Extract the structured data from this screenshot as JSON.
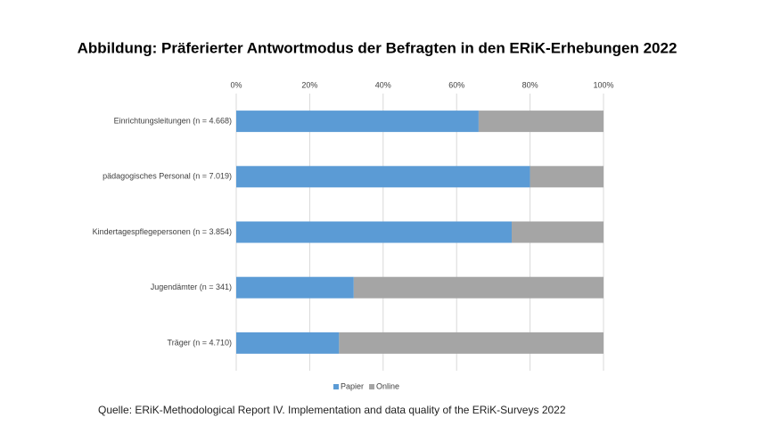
{
  "chart_data": {
    "type": "stacked-bar-horizontal",
    "title": "Abbildung: Präferierter Antwortmodus der Befragten in den ERiK-Erhebungen 2022",
    "categories": [
      "Einrichtungsleitungen (n = 4.668)",
      "pädagogisches Personal (n = 7.019)",
      "Kindertagespflegepersonen (n = 3.854)",
      "Jugendämter (n = 341)",
      "Träger (n = 4.710)"
    ],
    "series": [
      {
        "name": "Papier",
        "color": "#5b9bd5",
        "values": [
          66,
          80,
          75,
          32,
          28
        ]
      },
      {
        "name": "Online",
        "color": "#a5a5a5",
        "values": [
          34,
          20,
          25,
          68,
          72
        ]
      }
    ],
    "xlim": [
      0,
      100
    ],
    "xticks": [
      {
        "value": 0,
        "label": "0%"
      },
      {
        "value": 20,
        "label": "20%"
      },
      {
        "value": 40,
        "label": "40%"
      },
      {
        "value": 60,
        "label": "60%"
      },
      {
        "value": 80,
        "label": "80%"
      },
      {
        "value": 100,
        "label": "100%"
      }
    ],
    "grid": true,
    "legend": "bottom",
    "source": "Quelle: ERiK-Methodological Report IV. Implementation and data quality of the ERiK-Surveys 2022"
  }
}
